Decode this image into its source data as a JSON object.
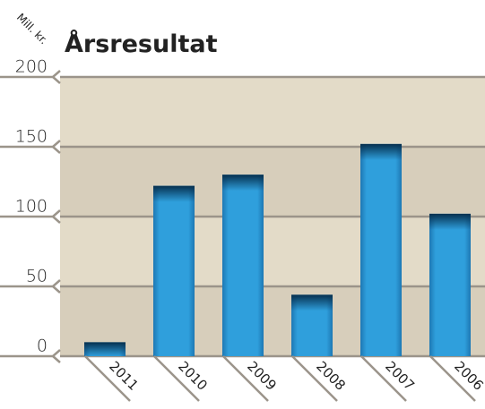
{
  "chart_data": {
    "type": "bar",
    "title": "Årsresultat",
    "y_label": "Mill. kr.",
    "categories": [
      "2011",
      "2010",
      "2009",
      "2008",
      "2007",
      "2006"
    ],
    "values": [
      10,
      122,
      130,
      44,
      152,
      102
    ],
    "color": "#2e9fdc",
    "ylim": [
      0,
      200
    ],
    "yticks": [
      0,
      50,
      100,
      150,
      200
    ],
    "grid": true
  }
}
